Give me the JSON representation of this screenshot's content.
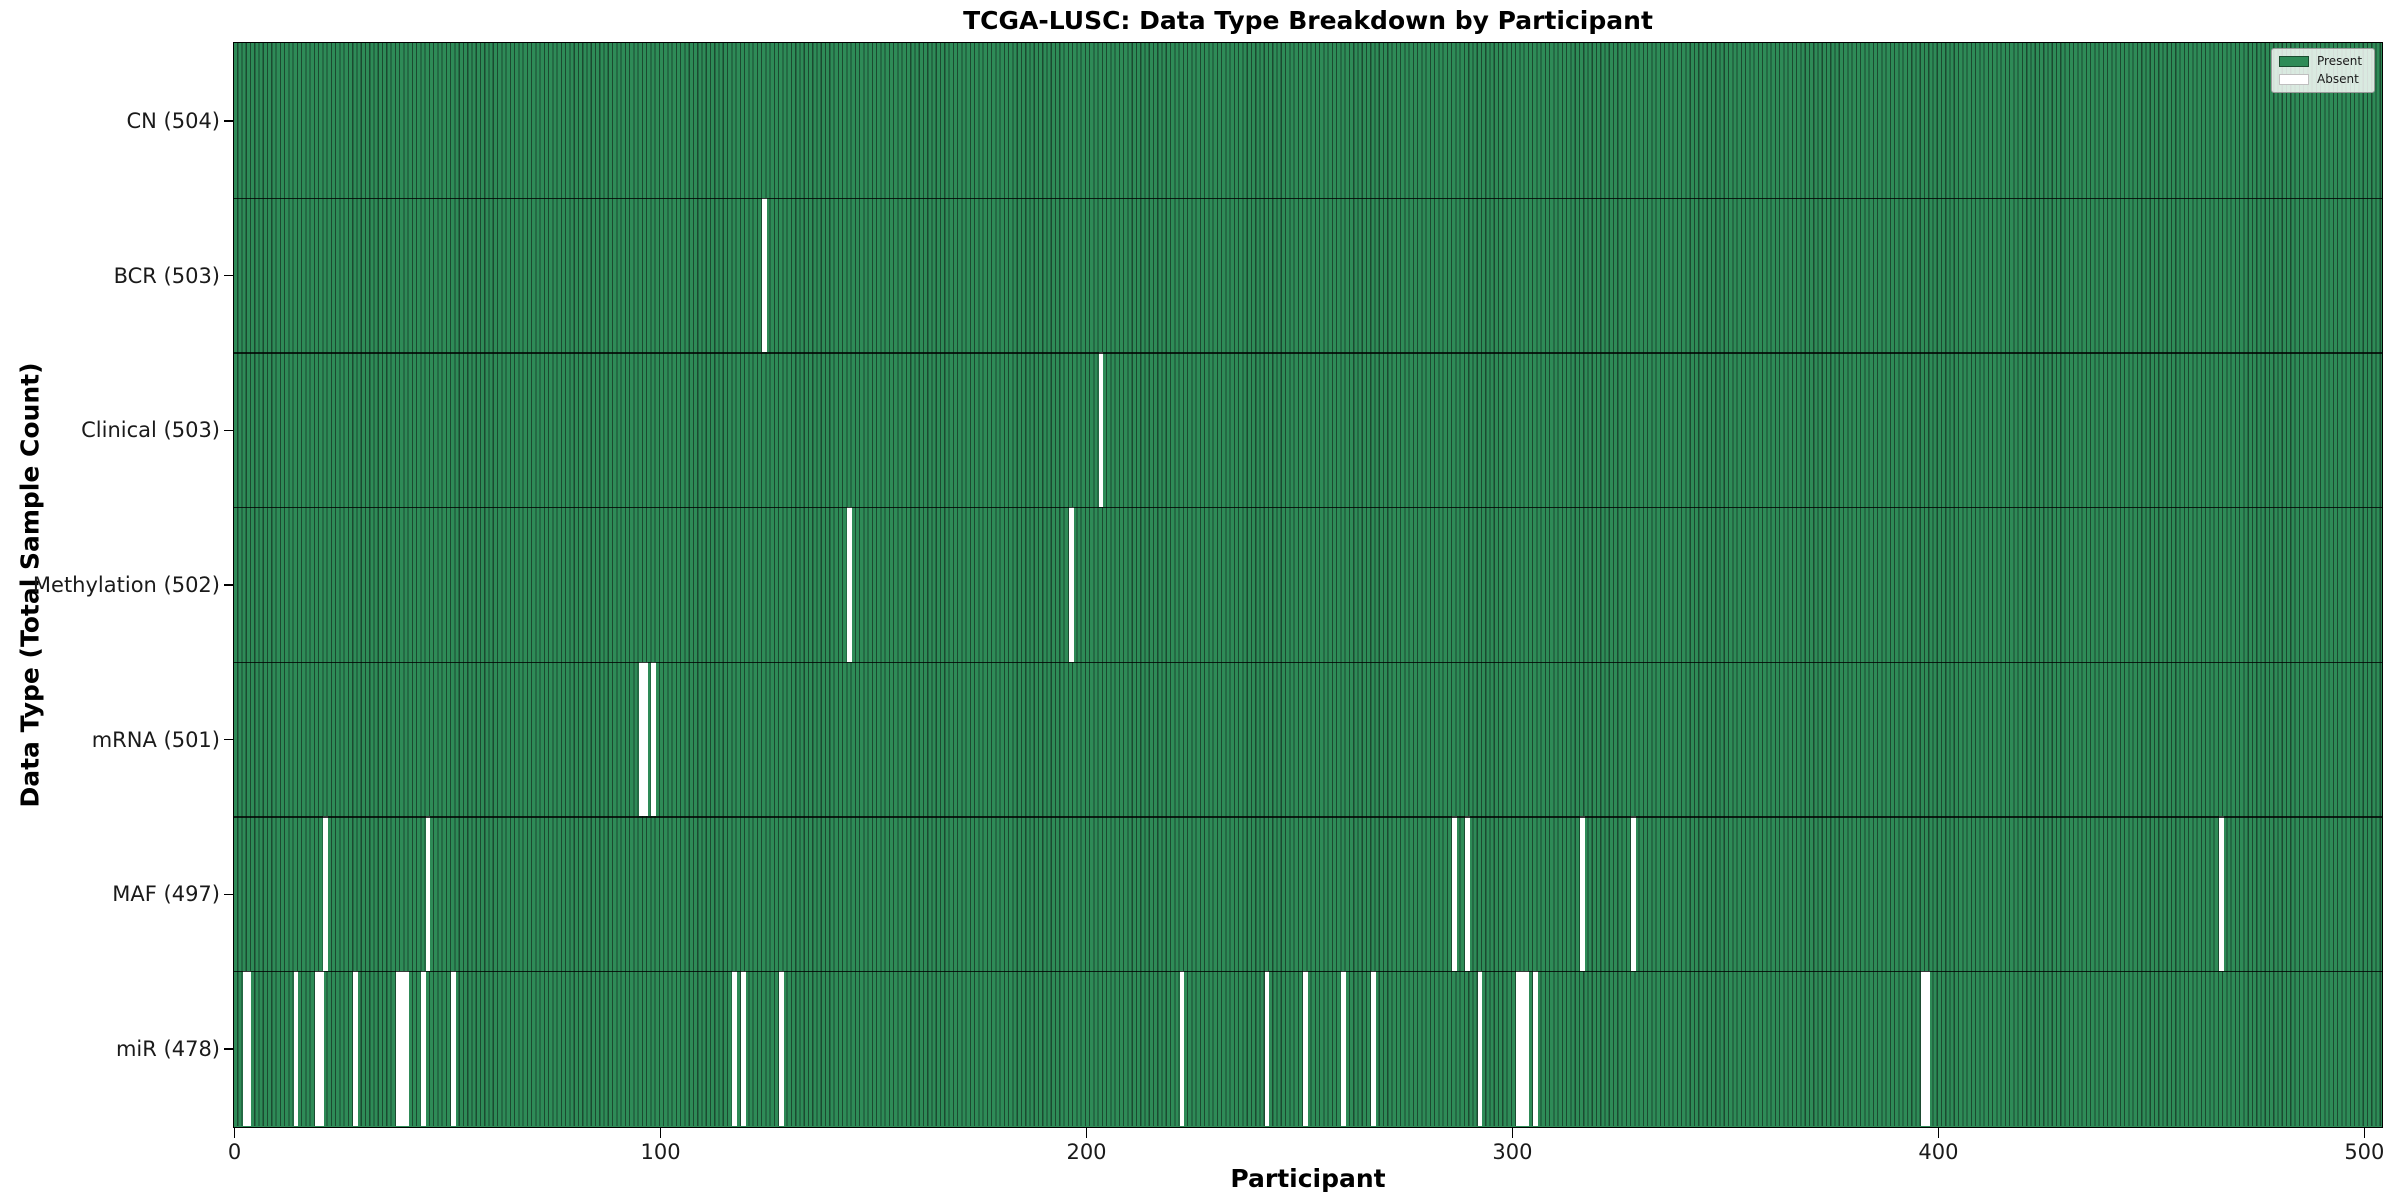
{
  "chart_data": {
    "type": "heatmap",
    "title": "TCGA-LUSC: Data Type Breakdown by Participant",
    "xlabel": "Participant",
    "ylabel": "Data Type (Total Sample Count)",
    "x_ticks": [
      0,
      100,
      200,
      300,
      400,
      500
    ],
    "n_participants": 504,
    "xlim": [
      0,
      504
    ],
    "grid": false,
    "legend": {
      "position": "upper right",
      "entries": [
        {
          "label": "Present",
          "color": "#2e8b57"
        },
        {
          "label": "Absent",
          "color": "#ffffff"
        }
      ]
    },
    "colors": {
      "present": "#2e8b57",
      "bar_edge": "#1b4a30",
      "absent": "#ffffff",
      "separator": "rgba(0,0,0,0.78)"
    },
    "rows": [
      {
        "label": "CN",
        "count": 504,
        "display": "CN (504)",
        "absent": []
      },
      {
        "label": "BCR",
        "count": 503,
        "display": "BCR (503)",
        "absent": [
          124
        ]
      },
      {
        "label": "Clinical",
        "count": 503,
        "display": "Clinical (503)",
        "absent": [
          203
        ]
      },
      {
        "label": "Methylation",
        "count": 502,
        "display": "Methylation (502)",
        "absent": [
          144,
          196
        ]
      },
      {
        "label": "mRNA",
        "count": 501,
        "display": "mRNA (501)",
        "absent": [
          95,
          96,
          98
        ]
      },
      {
        "label": "MAF",
        "count": 497,
        "display": "MAF (497)",
        "absent": [
          21,
          45,
          286,
          289,
          316,
          328,
          466
        ]
      },
      {
        "label": "miR",
        "count": 478,
        "display": "miR (478)",
        "absent": [
          2,
          3,
          14,
          19,
          20,
          28,
          38,
          39,
          40,
          44,
          51,
          117,
          119,
          128,
          222,
          242,
          251,
          260,
          267,
          292,
          301,
          302,
          303,
          305,
          396,
          397
        ]
      }
    ]
  }
}
